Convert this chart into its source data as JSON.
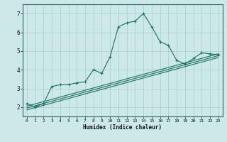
{
  "title": "",
  "xlabel": "Humidex (Indice chaleur)",
  "bg_color": "#cce8e8",
  "grid_color": "#aacccc",
  "line_color": "#1a7060",
  "xlim": [
    -0.5,
    23.5
  ],
  "ylim": [
    1.5,
    7.5
  ],
  "xticks": [
    0,
    1,
    2,
    3,
    4,
    5,
    6,
    7,
    8,
    9,
    10,
    11,
    12,
    13,
    14,
    15,
    16,
    17,
    18,
    19,
    20,
    21,
    22,
    23
  ],
  "yticks": [
    2,
    3,
    4,
    5,
    6,
    7
  ],
  "line1_x": [
    0,
    1,
    2,
    3,
    4,
    5,
    6,
    7,
    8,
    9,
    10,
    11,
    12,
    13,
    14,
    15,
    16,
    17,
    18,
    19,
    20,
    21,
    22,
    23
  ],
  "line1_y": [
    2.2,
    2.0,
    2.2,
    3.1,
    3.2,
    3.2,
    3.3,
    3.35,
    4.0,
    3.8,
    4.7,
    6.3,
    6.5,
    6.6,
    7.0,
    6.3,
    5.5,
    5.3,
    4.5,
    4.3,
    4.6,
    4.9,
    4.85,
    4.8
  ],
  "line2_x": [
    0,
    23
  ],
  "line2_y": [
    2.05,
    4.85
  ],
  "line3_x": [
    0,
    23
  ],
  "line3_y": [
    1.85,
    4.65
  ],
  "line4_x": [
    0,
    23
  ],
  "line4_y": [
    1.95,
    4.75
  ]
}
